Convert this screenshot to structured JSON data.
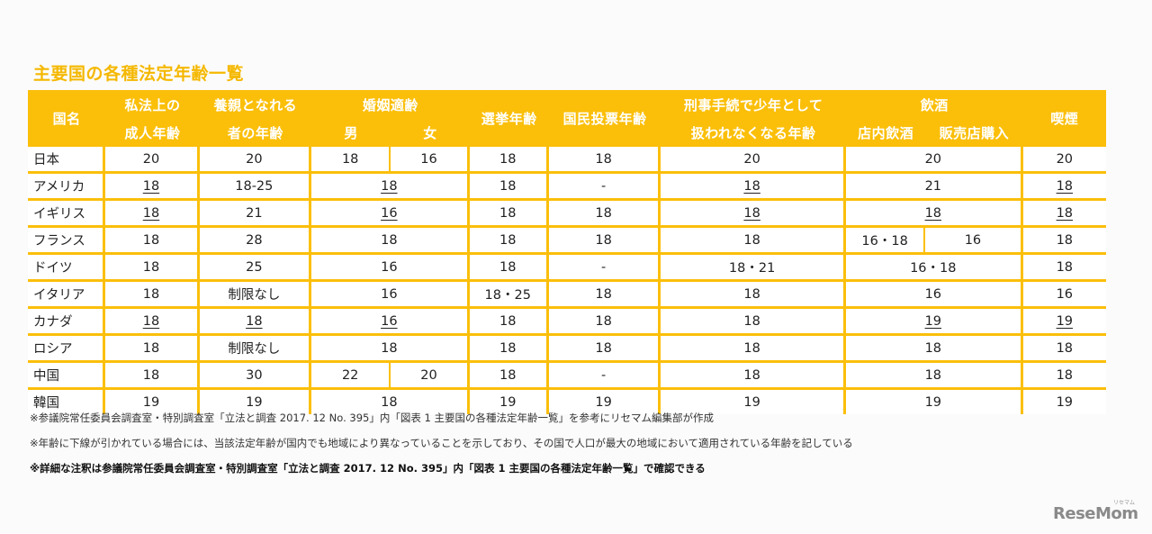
{
  "title": "主要国の各種法定年齢一覧",
  "headers": {
    "country": "国名",
    "adult_1": "私法上の",
    "adult_2": "成人年齢",
    "adopt_1": "養親となれる",
    "adopt_2": "者の年齢",
    "marriage": "婚姻適齢",
    "male": "男",
    "female": "女",
    "election": "選挙年齢",
    "referendum": "国民投票年齢",
    "criminal_1": "刑事手続で少年として",
    "criminal_2": "扱われなくなる年齢",
    "drinking": "飲酒",
    "drink_in": "店内飲酒",
    "drink_buy": "販売店購入",
    "smoking": "喫煙"
  },
  "rows": [
    {
      "country": "日本",
      "adult": "20",
      "adopt": "20",
      "male": "18",
      "female": "16",
      "election": "18",
      "referendum": "18",
      "criminal": "20",
      "drink": "20",
      "smoke": "20"
    },
    {
      "country": "アメリカ",
      "adult": "18",
      "adopt": "18-25",
      "marriage": "18",
      "election": "18",
      "referendum": "-",
      "criminal": "18",
      "drink": "21",
      "smoke": "18"
    },
    {
      "country": "イギリス",
      "adult": "18",
      "adopt": "21",
      "marriage": "16",
      "election": "18",
      "referendum": "18",
      "criminal": "18",
      "drink": "18",
      "smoke": "18"
    },
    {
      "country": "フランス",
      "adult": "18",
      "adopt": "28",
      "marriage": "18",
      "election": "18",
      "referendum": "18",
      "criminal": "18",
      "drink_in": "16・18",
      "drink_buy": "16",
      "smoke": "18"
    },
    {
      "country": "ドイツ",
      "adult": "18",
      "adopt": "25",
      "marriage": "16",
      "election": "18",
      "referendum": "-",
      "criminal": "18・21",
      "drink": "16・18",
      "smoke": "18"
    },
    {
      "country": "イタリア",
      "adult": "18",
      "adopt": "制限なし",
      "marriage": "16",
      "election": "18・25",
      "referendum": "18",
      "criminal": "18",
      "drink": "16",
      "smoke": "16"
    },
    {
      "country": "カナダ",
      "adult": "18",
      "adopt": "18",
      "marriage": "16",
      "election": "18",
      "referendum": "18",
      "criminal": "18",
      "drink": "19",
      "smoke": "19"
    },
    {
      "country": "ロシア",
      "adult": "18",
      "adopt": "制限なし",
      "marriage": "18",
      "election": "18",
      "referendum": "18",
      "criminal": "18",
      "drink": "18",
      "smoke": "18"
    },
    {
      "country": "中国",
      "adult": "18",
      "adopt": "30",
      "male": "22",
      "female": "20",
      "election": "18",
      "referendum": "-",
      "criminal": "18",
      "drink": "18",
      "smoke": "18"
    },
    {
      "country": "韓国",
      "adult": "19",
      "adopt": "19",
      "marriage": "18",
      "election": "19",
      "referendum": "19",
      "criminal": "19",
      "drink": "19",
      "smoke": "19"
    }
  ],
  "notes": {
    "note1": "※参議院常任委員会調査室・特別調査室「立法と調査 2017. 12 No. 395」内「図表 1 主要国の各種法定年齢一覧」を参考にリセマム編集部が作成",
    "note2": "※年齢に下線が引かれている場合には、当該法定年齢が国内でも地域により異なっていることを示しており、その国で人口が最大の地域において適用されている年齢を記している",
    "note3": "※詳細な注釈は参議院常任委員会調査室・特別調査室「立法と調査 2017. 12 No. 395」内「図表 1 主要国の各種法定年齢一覧」で確認できる"
  },
  "logo": "ReseMom",
  "logo_sub": "リセマム",
  "colors": {
    "accent": "#fbbf0a",
    "title": "#f5b800"
  }
}
